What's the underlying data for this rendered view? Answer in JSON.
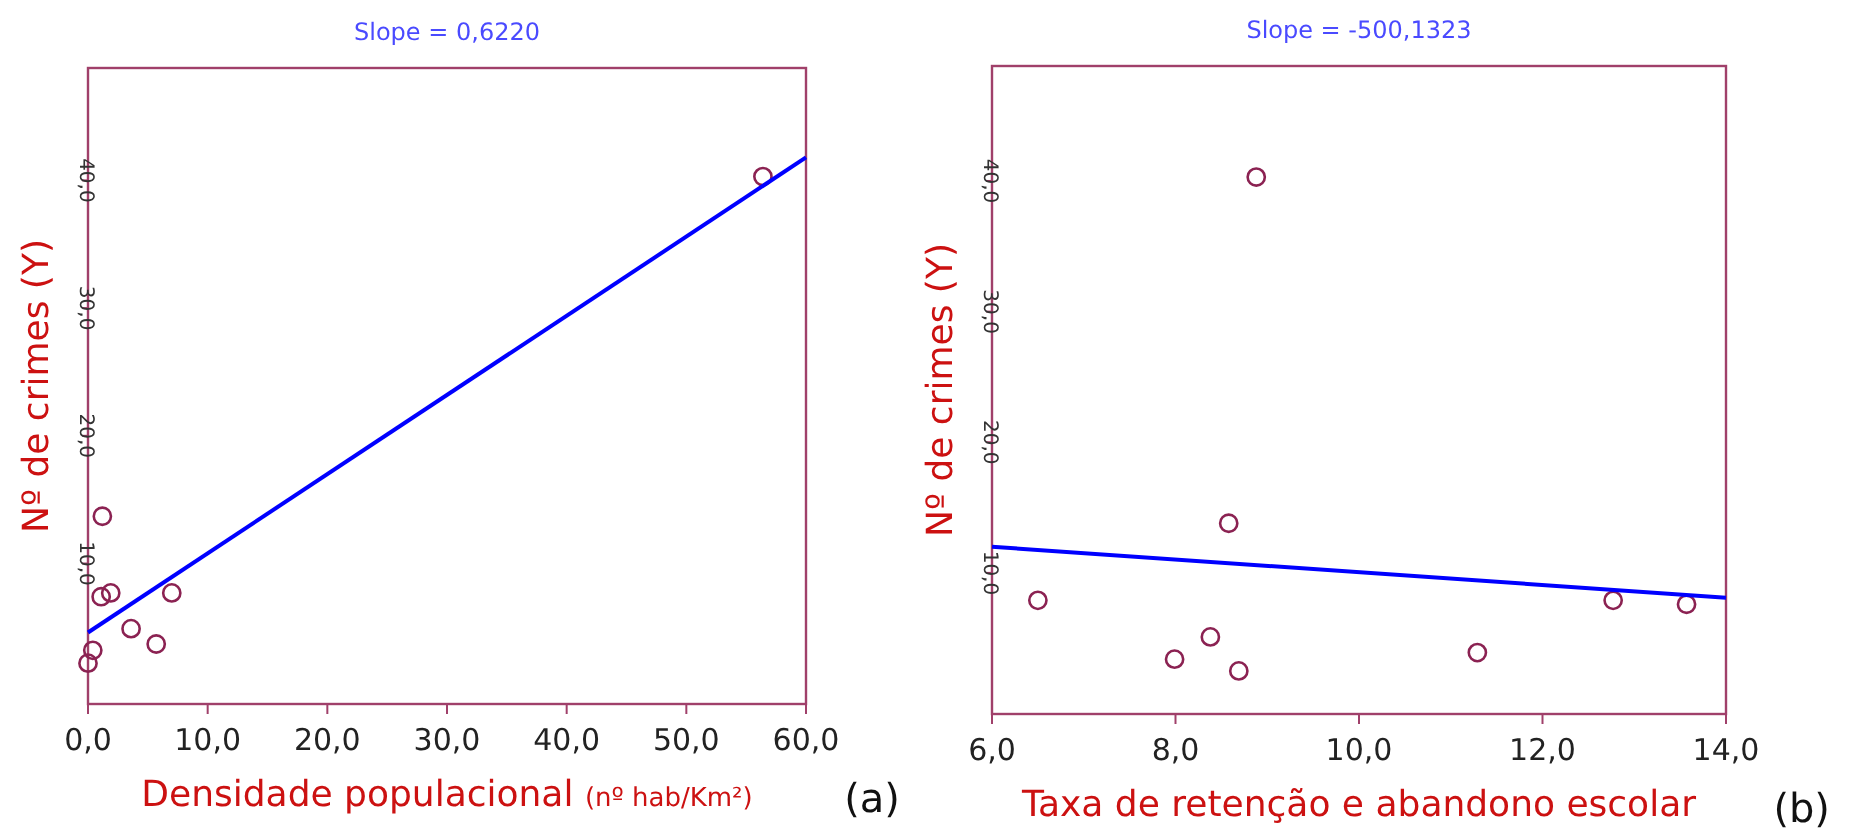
{
  "chart_data": [
    {
      "type": "scatter",
      "title": "Slope =  0,6220",
      "xlabel": "Densidade populacional  (nº hab/Km²)",
      "ylabel": "Nº de crimes  (Y)",
      "annotations": [
        "(a)"
      ],
      "xlim": [
        0,
        60
      ],
      "ylim": [
        -1,
        48.8
      ],
      "xticks": [
        {
          "value": 0,
          "label": "0,0"
        },
        {
          "value": 10,
          "label": "10,0"
        },
        {
          "value": 20,
          "label": "20,0"
        },
        {
          "value": 30,
          "label": "30,0"
        },
        {
          "value": 40,
          "label": "40,0"
        },
        {
          "value": 50,
          "label": "50,0"
        },
        {
          "value": 60,
          "label": "60,0"
        }
      ],
      "yticks": [
        {
          "value": 10,
          "label": "10,0"
        },
        {
          "value": 20,
          "label": "20,0"
        },
        {
          "value": 30,
          "label": "30,0"
        },
        {
          "value": 40,
          "label": "40,0"
        }
      ],
      "grid": false,
      "series": [
        {
          "marker": "circle",
          "color": "#8b2252",
          "x": [
            0,
            0.4,
            1.2,
            1.1,
            1.9,
            3.6,
            5.7,
            7.0,
            56.4
          ],
          "values": [
            2.2,
            3.2,
            13.7,
            7.4,
            7.7,
            4.9,
            3.7,
            7.7,
            40.3
          ]
        },
        {
          "type": "line",
          "marker": "none",
          "color": "#0000ff",
          "x": [
            0,
            60
          ],
          "values": [
            4.6,
            41.8
          ]
        }
      ]
    },
    {
      "type": "scatter",
      "title": "Slope = -500,1323",
      "xlabel": "Taxa de retenção e abandono escolar",
      "ylabel": "Nº de crimes  (Y)",
      "annotations": [
        "(b)"
      ],
      "xlim": [
        6,
        14
      ],
      "ylim": [
        -0.8,
        48.8
      ],
      "xticks": [
        {
          "value": 6,
          "label": "6,0"
        },
        {
          "value": 8,
          "label": "8,0"
        },
        {
          "value": 10,
          "label": "10,0"
        },
        {
          "value": 12,
          "label": "12,0"
        },
        {
          "value": 14,
          "label": "14,0"
        }
      ],
      "yticks": [
        {
          "value": 10,
          "label": "10,0"
        },
        {
          "value": 20,
          "label": "20,0"
        },
        {
          "value": 30,
          "label": "30,0"
        },
        {
          "value": 40,
          "label": "40,0"
        }
      ],
      "grid": false,
      "series": [
        {
          "marker": "circle",
          "color": "#8b2252",
          "x": [
            6.5,
            7.99,
            8.38,
            8.58,
            8.69,
            8.88,
            11.29,
            12.77,
            13.57
          ],
          "values": [
            7.9,
            3.4,
            5.1,
            13.8,
            2.5,
            40.3,
            3.9,
            7.9,
            7.6
          ]
        },
        {
          "type": "line",
          "marker": "none",
          "color": "#0000ff",
          "x": [
            6,
            14
          ],
          "values": [
            12.0,
            8.1
          ]
        }
      ]
    }
  ]
}
